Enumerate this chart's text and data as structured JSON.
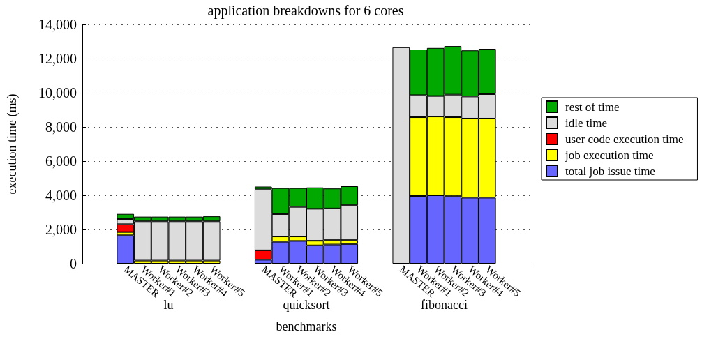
{
  "chart_data": {
    "type": "bar",
    "title": "application breakdowns for 6 cores",
    "xlabel": "benchmarks",
    "ylabel": "execution time (ms)",
    "categories": [
      null,
      null,
      "MASTER",
      "Worker#1",
      "Worker#2",
      "Worker#3",
      "Worker#4",
      "Worker#5",
      null,
      null,
      "MASTER",
      "Worker#1",
      "Worker#2",
      "Worker#3",
      "Worker#4",
      "Worker#5",
      null,
      null,
      "MASTER",
      "Worker#1",
      "Worker#2",
      "Worker#3",
      "Worker#4",
      "Worker#5",
      null,
      null
    ],
    "series": [
      {
        "name": "total job issue time",
        "color": "#6666ff",
        "values": [
          null,
          null,
          1660,
          null,
          null,
          null,
          null,
          null,
          null,
          null,
          230,
          1280,
          1330,
          1070,
          1120,
          1150,
          null,
          null,
          null,
          3960,
          4000,
          3950,
          3860,
          3860,
          null,
          null
        ]
      },
      {
        "name": "job execution time",
        "color": "#ffff00",
        "values": [
          null,
          null,
          190,
          180,
          180,
          180,
          180,
          180,
          null,
          null,
          null,
          310,
          260,
          270,
          260,
          230,
          null,
          null,
          null,
          4610,
          4610,
          4620,
          4630,
          4630,
          null,
          null
        ]
      },
      {
        "name": "user code execution time",
        "color": "#ff0000",
        "values": [
          null,
          null,
          460,
          null,
          null,
          null,
          null,
          null,
          null,
          null,
          550,
          null,
          null,
          null,
          null,
          null,
          null,
          null,
          null,
          null,
          null,
          null,
          null,
          null,
          null,
          null
        ]
      },
      {
        "name": "idle time",
        "color": "#dcdcdc",
        "values": [
          null,
          null,
          300,
          2300,
          2300,
          2300,
          2300,
          2300,
          null,
          null,
          3570,
          1310,
          1730,
          1870,
          1850,
          2040,
          null,
          null,
          12660,
          1290,
          1200,
          1320,
          1290,
          1430,
          null,
          null
        ]
      },
      {
        "name": "rest of time",
        "color": "#00a800",
        "values": [
          null,
          null,
          300,
          270,
          270,
          270,
          270,
          290,
          null,
          null,
          160,
          1520,
          1100,
          1250,
          1170,
          1110,
          null,
          null,
          null,
          2670,
          2810,
          2840,
          2700,
          2650,
          null,
          null
        ]
      }
    ],
    "annotations": [
      "lu",
      "quicksort",
      "fibonacci"
    ],
    "stacked": true,
    "ylim": [
      0,
      14000
    ],
    "yticks": [
      0,
      {
        "value": 2000,
        "label": "2,000"
      },
      {
        "value": 4000,
        "label": "4,000"
      },
      {
        "value": 6000,
        "label": "6,000"
      },
      {
        "value": 8000,
        "label": "8,000"
      },
      {
        "value": 10000,
        "label": "10,000"
      },
      {
        "value": 12000,
        "label": "12,000"
      },
      {
        "value": 14000,
        "label": "14,000"
      }
    ],
    "grid": "y",
    "legend": "right"
  }
}
